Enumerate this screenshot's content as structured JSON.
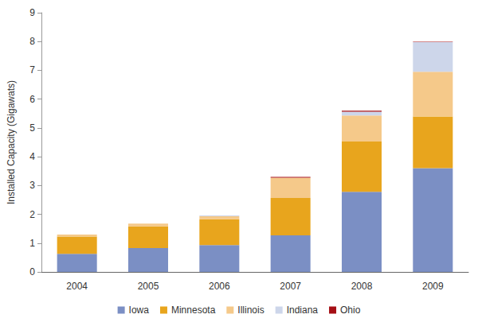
{
  "chart_data": {
    "type": "bar",
    "stacked": true,
    "y_label": "Installed Capacity (Gigawats)",
    "categories": [
      "2004",
      "2005",
      "2006",
      "2007",
      "2008",
      "2009"
    ],
    "series": [
      {
        "name": "Iowa",
        "color": "#7b8fc4",
        "values": [
          0.63,
          0.83,
          0.93,
          1.27,
          2.78,
          3.6
        ]
      },
      {
        "name": "Minnesota",
        "color": "#e8a51d",
        "values": [
          0.6,
          0.75,
          0.9,
          1.3,
          1.75,
          1.8
        ]
      },
      {
        "name": "Illinois",
        "color": "#f5c98a",
        "values": [
          0.07,
          0.1,
          0.1,
          0.7,
          0.9,
          1.55
        ]
      },
      {
        "name": "Indiana",
        "color": "#cdd6ea",
        "values": [
          0,
          0,
          0.03,
          0,
          0.13,
          1.03
        ]
      },
      {
        "name": "Ohio",
        "color": "#a50f15",
        "values": [
          0,
          0,
          0,
          0.03,
          0.04,
          0.01
        ]
      }
    ],
    "ylim": [
      0,
      9
    ],
    "yticks": [
      0,
      1,
      2,
      3,
      4,
      5,
      6,
      7,
      8,
      9
    ],
    "grid": false,
    "legend": "bottom"
  }
}
